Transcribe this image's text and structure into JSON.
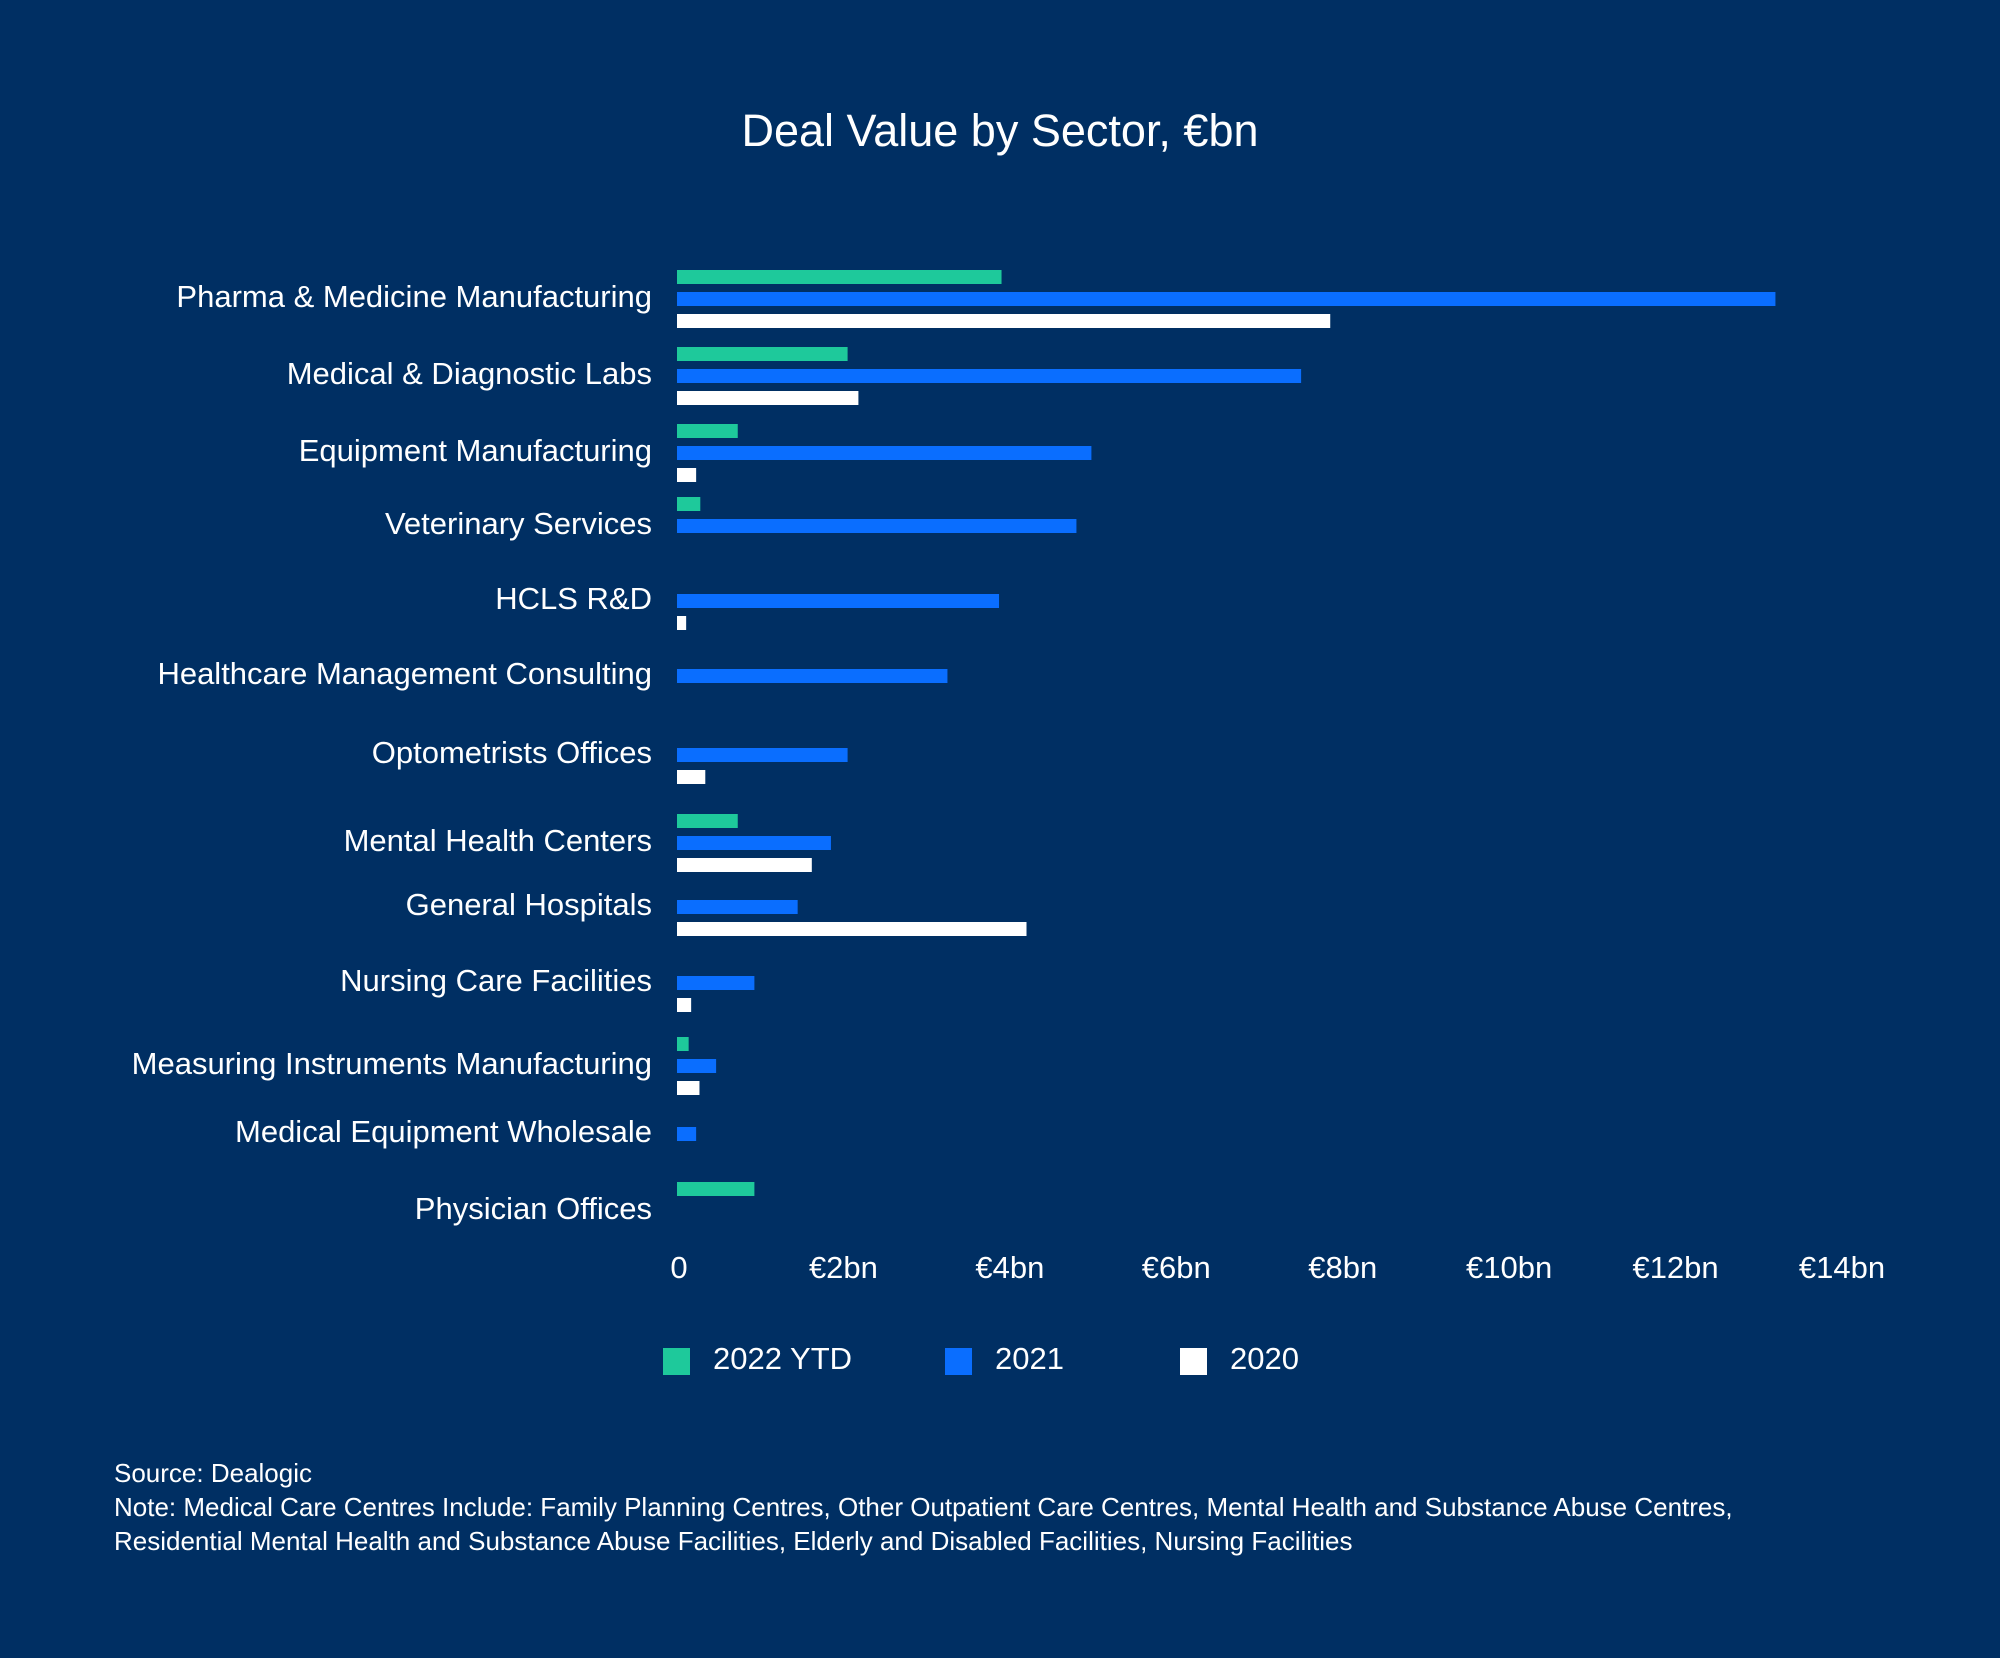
{
  "chart_data": {
    "type": "bar",
    "orientation": "horizontal",
    "title": "Deal Value by Sector, €bn",
    "xlabel": "",
    "ylabel": "",
    "xlim": [
      0,
      14
    ],
    "x_ticks": [
      0,
      2,
      4,
      6,
      8,
      10,
      12,
      14
    ],
    "x_tick_labels": [
      "0",
      "€2bn",
      "€4bn",
      "€6bn",
      "€8bn",
      "€10bn",
      "€12bn",
      "€14bn"
    ],
    "grid": false,
    "legend_position": "bottom",
    "categories": [
      "Pharma & Medicine Manufacturing",
      "Medical & Diagnostic Labs",
      "Equipment Manufacturing",
      "Veterinary Services",
      "HCLS R&D",
      "Healthcare Management Consulting",
      "Optometrists Offices",
      "Mental Health Centers",
      "General Hospitals",
      "Nursing Care Facilities",
      "Measuring Instruments Manufacturing",
      "Medical Equipment Wholesale",
      "Physician Offices"
    ],
    "series": [
      {
        "name": "2022 YTD",
        "color": "#1ec99b",
        "values": [
          3.9,
          2.05,
          0.73,
          0.28,
          0,
          0,
          0,
          0.73,
          0,
          0,
          0.14,
          0,
          0.93
        ]
      },
      {
        "name": "2021",
        "color": "#0a6eff",
        "values": [
          13.2,
          7.5,
          4.98,
          4.8,
          3.87,
          3.25,
          2.05,
          1.85,
          1.45,
          0.93,
          0.47,
          0.23,
          0
        ]
      },
      {
        "name": "2020",
        "color": "#ffffff",
        "values": [
          7.85,
          2.18,
          0.23,
          0,
          0.11,
          0,
          0.34,
          1.62,
          4.2,
          0.17,
          0.27,
          0,
          0
        ]
      }
    ]
  },
  "footnote": {
    "source": "Source: Dealogic",
    "note_line1": "Note: Medical Care Centres Include: Family Planning Centres, Other Outpatient Care Centres, Mental Health and Substance Abuse Centres,",
    "note_line2": "Residential Mental Health and Substance Abuse Facilities, Elderly and Disabled Facilities, Nursing Facilities"
  }
}
